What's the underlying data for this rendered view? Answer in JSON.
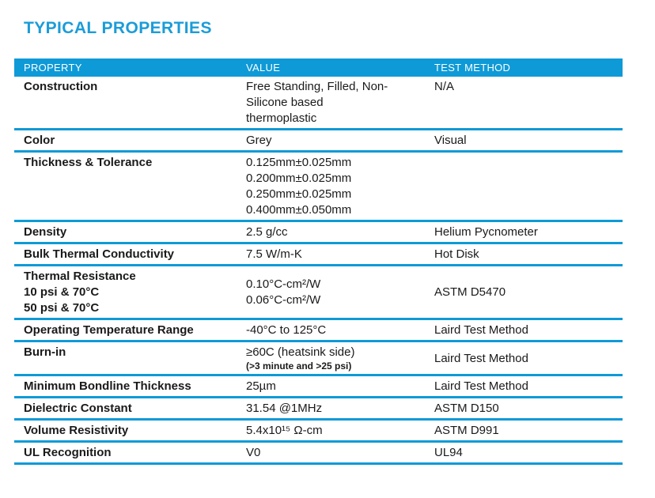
{
  "page": {
    "title": "TYPICAL PROPERTIES"
  },
  "colors": {
    "accent": "#0e9ad7",
    "title": "#1b9cd8",
    "header_text": "#ffffff",
    "body_text": "#1a1a1a"
  },
  "table": {
    "headers": [
      "PROPERTY",
      "VALUE",
      "TEST METHOD"
    ],
    "rows": [
      {
        "property": "Construction",
        "value": "Free Standing, Filled, Non-\nSilicone based\nthermoplastic",
        "method": "N/A"
      },
      {
        "property": "Color",
        "value": "Grey",
        "method": "Visual"
      },
      {
        "property": "Thickness & Tolerance",
        "value": "0.125mm±0.025mm\n0.200mm±0.025mm\n0.250mm±0.025mm\n0.400mm±0.050mm",
        "method": ""
      },
      {
        "property": "Density",
        "value": "2.5 g/cc",
        "method": "Helium Pycnometer"
      },
      {
        "property": "Bulk Thermal Conductivity",
        "value": "7.5 W/m-K",
        "method": "Hot Disk"
      },
      {
        "property": "Thermal Resistance\n10 psi & 70°C\n50 psi & 70°C",
        "value": "0.10°C-cm²/W\n0.06°C-cm²/W",
        "method": "ASTM D5470"
      },
      {
        "property": "Operating Temperature Range",
        "value": "-40°C to 125°C",
        "method": "Laird Test Method"
      },
      {
        "property": "Burn-in",
        "value": "≥60C (heatsink side)",
        "value_sub": "(>3 minute and >25 psi)",
        "method": "Laird Test Method"
      },
      {
        "property": "Minimum Bondline Thickness",
        "value": "25µm",
        "method": "Laird Test Method"
      },
      {
        "property": "Dielectric Constant",
        "value": "31.54 @1MHz",
        "method": "ASTM D150"
      },
      {
        "property": "Volume Resistivity",
        "value": "5.4x10¹⁵ Ω-cm",
        "method": "ASTM D991"
      },
      {
        "property": "UL Recognition",
        "value": "V0",
        "method": "UL94"
      }
    ]
  }
}
